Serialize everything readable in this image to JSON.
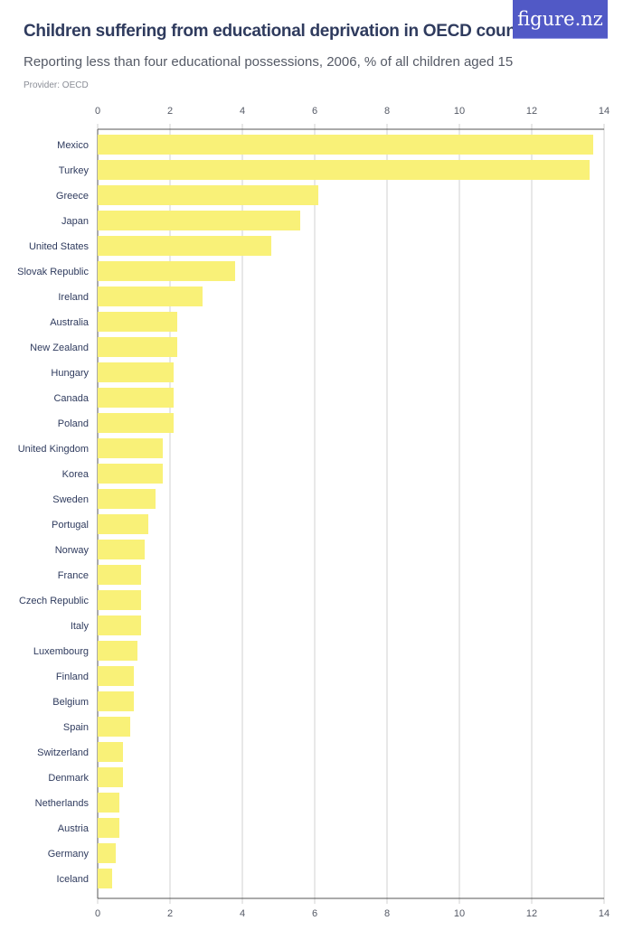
{
  "header": {
    "title": "Children suffering from educational deprivation in OECD countries",
    "subtitle": "Reporting less than four educational possessions, 2006, % of all children aged 15",
    "provider": "Provider: OECD",
    "logo": "figure.nz"
  },
  "colors": {
    "bar": "#f9f178",
    "logo_bg": "#5159c6",
    "title": "#2f3b5e",
    "grid": "#d0d0d0"
  },
  "chart_data": {
    "type": "bar",
    "orientation": "horizontal",
    "title": "Children suffering from educational deprivation in OECD countries",
    "subtitle": "Reporting less than four educational possessions, 2006, % of all children aged 15",
    "xlim": [
      0,
      14
    ],
    "ticks": [
      0,
      2,
      4,
      6,
      8,
      10,
      12,
      14
    ],
    "tick_labels": [
      "0",
      "2",
      "4",
      "6",
      "8",
      "10",
      "12",
      "14"
    ],
    "grid": true,
    "categories": [
      "Mexico",
      "Turkey",
      "Greece",
      "Japan",
      "United States",
      "Slovak Republic",
      "Ireland",
      "Australia",
      "New Zealand",
      "Hungary",
      "Canada",
      "Poland",
      "United Kingdom",
      "Korea",
      "Sweden",
      "Portugal",
      "Norway",
      "France",
      "Czech Republic",
      "Italy",
      "Luxembourg",
      "Finland",
      "Belgium",
      "Spain",
      "Switzerland",
      "Denmark",
      "Netherlands",
      "Austria",
      "Germany",
      "Iceland"
    ],
    "values": [
      13.7,
      13.6,
      6.1,
      5.6,
      4.8,
      3.8,
      2.9,
      2.2,
      2.2,
      2.1,
      2.1,
      2.1,
      1.8,
      1.8,
      1.6,
      1.4,
      1.3,
      1.2,
      1.2,
      1.2,
      1.1,
      1.0,
      1.0,
      0.9,
      0.7,
      0.7,
      0.6,
      0.6,
      0.5,
      0.4
    ]
  }
}
